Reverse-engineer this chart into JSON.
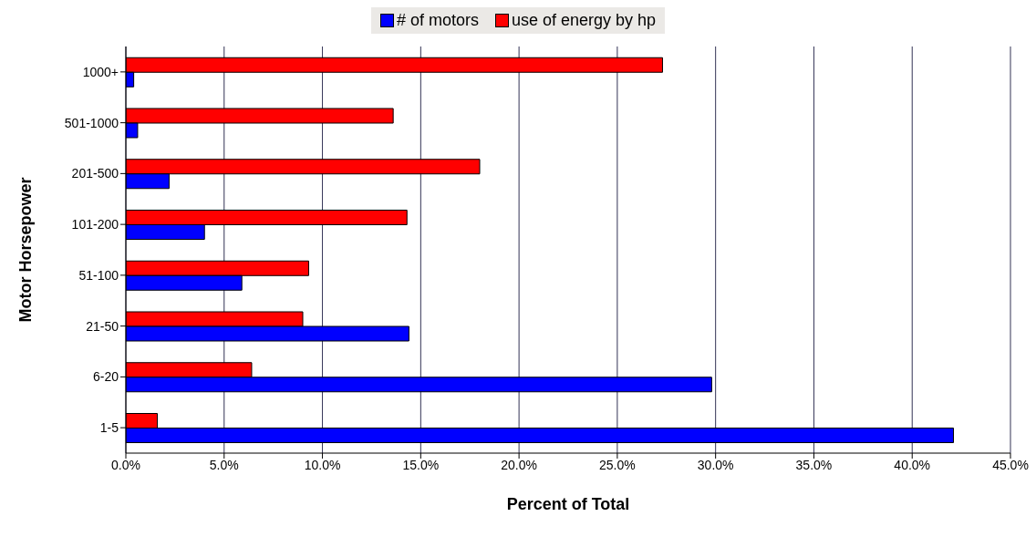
{
  "chart_data": {
    "type": "bar",
    "orientation": "horizontal",
    "xlabel": "Percent of Total",
    "ylabel": "Motor Horsepower",
    "categories": [
      "1000+",
      "501-1000",
      "201-500",
      "101-200",
      "51-100",
      "21-50",
      "6-20",
      "1-5"
    ],
    "series": [
      {
        "name": "# of motors",
        "color": "#0000ff",
        "values": [
          0.4,
          0.6,
          2.2,
          4.0,
          5.9,
          14.4,
          29.8,
          42.1
        ]
      },
      {
        "name": "use of energy by hp",
        "color": "#ff0000",
        "values": [
          27.3,
          13.6,
          18.0,
          14.3,
          9.3,
          9.0,
          6.4,
          1.6
        ]
      }
    ],
    "xlim": [
      0,
      45
    ],
    "xticks": [
      {
        "value": 0,
        "label": "0.0%"
      },
      {
        "value": 5,
        "label": "5.0%"
      },
      {
        "value": 10,
        "label": "10.0%"
      },
      {
        "value": 15,
        "label": "15.0%"
      },
      {
        "value": 20,
        "label": "20.0%"
      },
      {
        "value": 25,
        "label": "25.0%"
      },
      {
        "value": 30,
        "label": "30.0%"
      },
      {
        "value": 35,
        "label": "35.0%"
      },
      {
        "value": 40,
        "label": "40.0%"
      },
      {
        "value": 45,
        "label": "45.0%"
      }
    ],
    "grid": "x",
    "legend": "top"
  }
}
